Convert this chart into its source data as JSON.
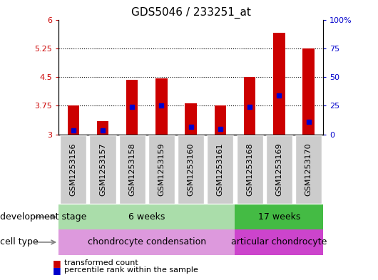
{
  "title": "GDS5046 / 233251_at",
  "samples": [
    "GSM1253156",
    "GSM1253157",
    "GSM1253158",
    "GSM1253159",
    "GSM1253160",
    "GSM1253161",
    "GSM1253168",
    "GSM1253169",
    "GSM1253170"
  ],
  "bar_bottom": 3.0,
  "red_tops": [
    3.75,
    3.35,
    4.42,
    4.47,
    3.82,
    3.75,
    4.5,
    5.65,
    5.25
  ],
  "blue_positions": [
    3.1,
    3.1,
    3.72,
    3.75,
    3.19,
    3.15,
    3.72,
    4.02,
    3.32
  ],
  "ylim_left": [
    3.0,
    6.0
  ],
  "ylim_right": [
    0,
    100
  ],
  "yticks_left": [
    3.0,
    3.75,
    4.5,
    5.25,
    6.0
  ],
  "yticks_right": [
    0,
    25,
    50,
    75,
    100
  ],
  "ytick_labels_left": [
    "3",
    "3.75",
    "4.5",
    "5.25",
    "6"
  ],
  "ytick_labels_right": [
    "0",
    "25",
    "50",
    "75",
    "100%"
  ],
  "bar_width": 0.4,
  "red_color": "#cc0000",
  "blue_color": "#0000cc",
  "grid_color": "black",
  "plot_bg_color": "#ffffff",
  "sample_bg_color": "#cccccc",
  "dev_stage_6w_color": "#aaddaa",
  "dev_stage_17w_color": "#44bb44",
  "cell_type_chondro_color": "#dd99dd",
  "cell_type_articular_color": "#cc44cc",
  "dev_6w_label": "6 weeks",
  "dev_17w_label": "17 weeks",
  "cell_chondro_label": "chondrocyte condensation",
  "cell_articular_label": "articular chondrocyte",
  "legend_red_label": "transformed count",
  "legend_blue_label": "percentile rank within the sample",
  "dev_stage_label": "development stage",
  "cell_type_label": "cell type",
  "title_fontsize": 11,
  "tick_fontsize": 8,
  "label_fontsize": 9,
  "annot_fontsize": 9
}
